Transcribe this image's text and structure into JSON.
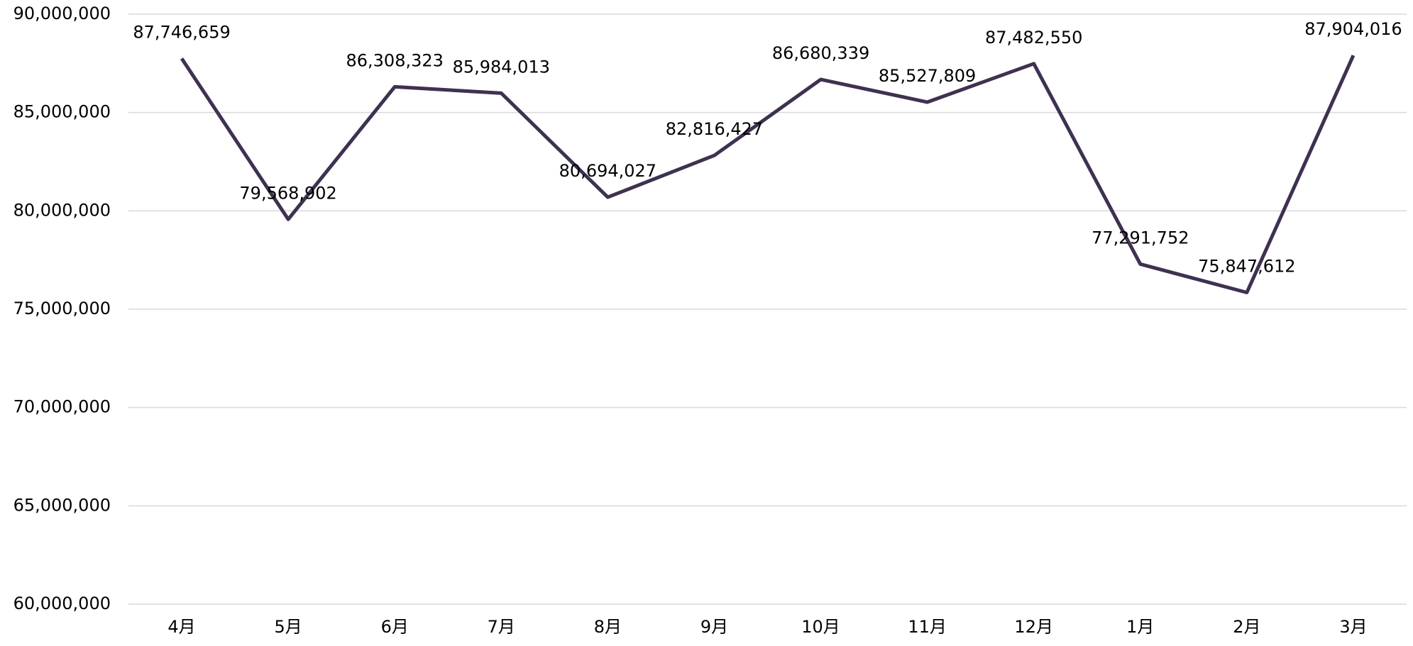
{
  "chart_data": {
    "type": "line",
    "categories": [
      "4月",
      "5月",
      "6月",
      "7月",
      "8月",
      "9月",
      "10月",
      "11月",
      "12月",
      "1月",
      "2月",
      "3月"
    ],
    "series": [
      {
        "color": "#3f3151",
        "values": [
          87746659,
          79568902,
          86308323,
          85984013,
          80694027,
          82816427,
          86680339,
          85527809,
          87482550,
          77291752,
          75847612,
          87904016
        ],
        "value_labels": [
          "87,746,659",
          "79,568,902",
          "86,308,323",
          "85,984,013",
          "80,694,027",
          "82,816,427",
          "86,680,339",
          "85,527,809",
          "87,482,550",
          "77,291,752",
          "75,847,612",
          "87,904,016"
        ]
      }
    ],
    "ylim": [
      60000000,
      90000000
    ],
    "yticks": [
      {
        "value": 60000000,
        "label": "60,000,000"
      },
      {
        "value": 65000000,
        "label": "65,000,000"
      },
      {
        "value": 70000000,
        "label": "70,000,000"
      },
      {
        "value": 75000000,
        "label": "75,000,000"
      },
      {
        "value": 80000000,
        "label": "80,000,000"
      },
      {
        "value": 85000000,
        "label": "85,000,000"
      },
      {
        "value": 90000000,
        "label": "90,000,000"
      }
    ],
    "grid": true
  }
}
